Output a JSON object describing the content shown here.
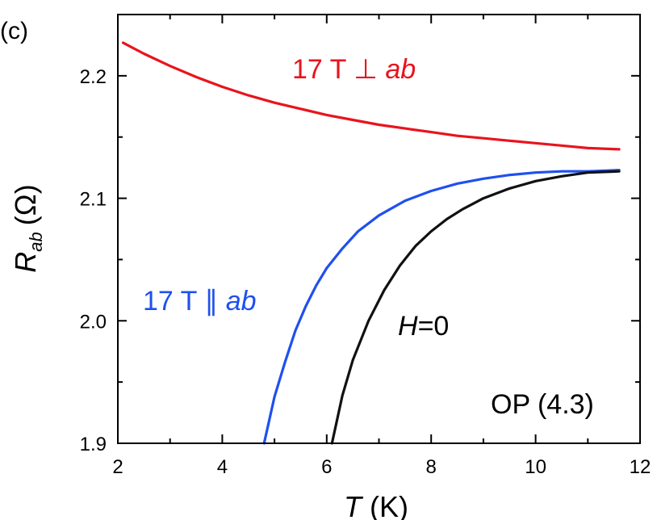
{
  "panel_label": "(c)",
  "colors": {
    "red": "#e8141e",
    "blue": "#1f50ee",
    "black": "#111111"
  },
  "chart_data": {
    "type": "line",
    "xlabel": {
      "main": "T",
      "unit": "(K)"
    },
    "ylabel": {
      "main": "R",
      "sub": "ab",
      "unit": "(Ω)"
    },
    "xlim": [
      2,
      12
    ],
    "ylim": [
      1.9,
      2.25
    ],
    "xticks": [
      2,
      4,
      6,
      8,
      10,
      12
    ],
    "xtick_labels": [
      "2",
      "4",
      "6",
      "8",
      "10",
      "12"
    ],
    "yticks": [
      1.9,
      2.0,
      2.1,
      2.2
    ],
    "ytick_labels": [
      "1.9",
      "2.0",
      "2.1",
      "2.2"
    ],
    "annotations": {
      "perp": {
        "main": "17 T ⊥ ",
        "italic": "ab"
      },
      "par": {
        "main": "17 T ∥ ",
        "italic": "ab"
      },
      "zero": {
        "italic": "H",
        "main": "=0"
      },
      "sample": "OP (4.3)"
    },
    "series": [
      {
        "name": "17 T ⊥ ab",
        "color": "#e8141e",
        "x": [
          2.1,
          2.5,
          3.0,
          3.5,
          4.0,
          4.5,
          5.0,
          5.5,
          6.0,
          6.5,
          7.0,
          7.5,
          8.0,
          8.5,
          9.0,
          9.5,
          10.0,
          10.5,
          11.0,
          11.6
        ],
        "y": [
          2.227,
          2.218,
          2.208,
          2.199,
          2.191,
          2.184,
          2.178,
          2.173,
          2.168,
          2.164,
          2.16,
          2.157,
          2.154,
          2.151,
          2.149,
          2.147,
          2.145,
          2.143,
          2.141,
          2.14
        ]
      },
      {
        "name": "17 T ∥ ab",
        "color": "#1f50ee",
        "x": [
          4.8,
          5.0,
          5.2,
          5.4,
          5.6,
          5.8,
          6.0,
          6.3,
          6.6,
          7.0,
          7.5,
          8.0,
          8.5,
          9.0,
          9.5,
          10.0,
          10.5,
          11.0,
          11.6
        ],
        "y": [
          1.9,
          1.938,
          1.966,
          1.992,
          2.012,
          2.029,
          2.043,
          2.059,
          2.073,
          2.086,
          2.098,
          2.106,
          2.112,
          2.116,
          2.119,
          2.121,
          2.122,
          2.122,
          2.123
        ]
      },
      {
        "name": "H=0",
        "color": "#111111",
        "x": [
          6.1,
          6.3,
          6.5,
          6.8,
          7.1,
          7.4,
          7.7,
          8.0,
          8.3,
          8.6,
          9.0,
          9.5,
          10.0,
          10.5,
          11.0,
          11.6
        ],
        "y": [
          1.9,
          1.939,
          1.968,
          2.0,
          2.025,
          2.045,
          2.061,
          2.073,
          2.083,
          2.091,
          2.1,
          2.108,
          2.114,
          2.118,
          2.121,
          2.122
        ]
      }
    ]
  }
}
